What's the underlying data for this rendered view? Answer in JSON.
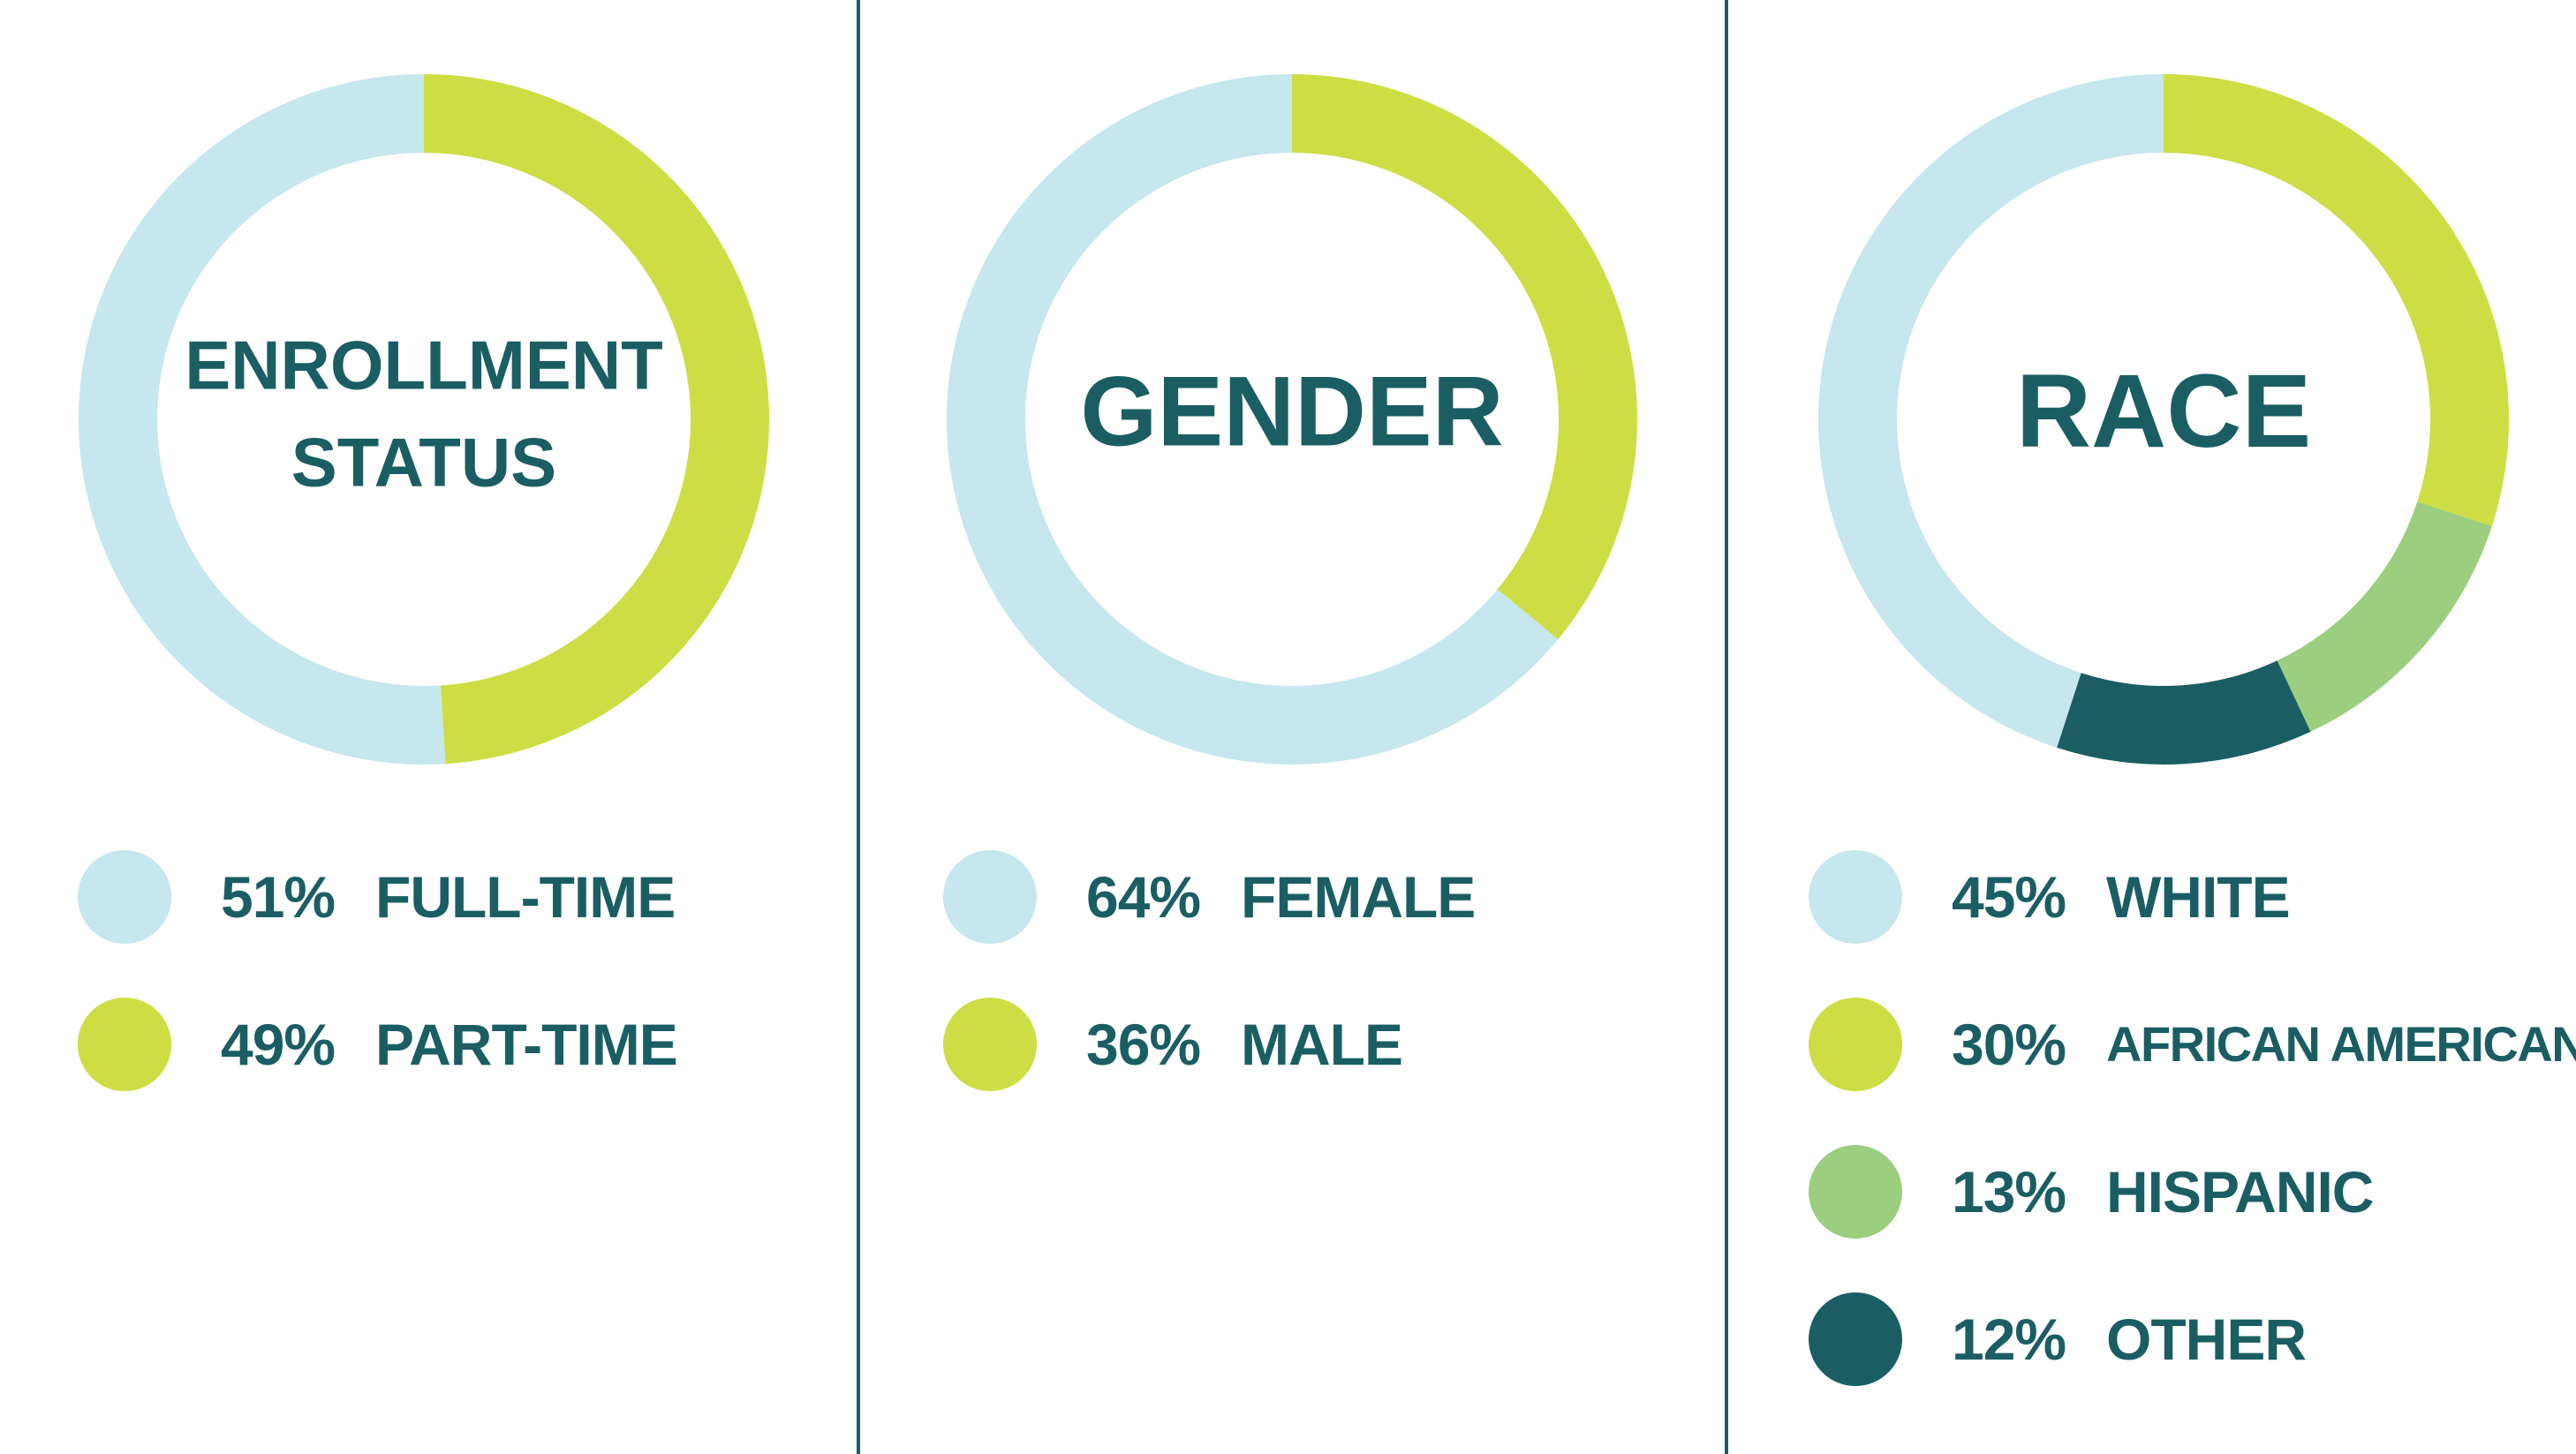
{
  "colors": {
    "light_blue": "#c5e7ed",
    "lime": "#cdde44",
    "light_green": "#9bcf7f",
    "dark_teal": "#1a5e63",
    "text": "#1a5e63"
  },
  "chart_data": [
    {
      "type": "pie",
      "title": "ENROLLMENT STATUS",
      "title_lines": [
        "ENROLLMENT",
        "STATUS"
      ],
      "categories": [
        "FULL-TIME",
        "PART-TIME"
      ],
      "values": [
        51,
        49
      ],
      "value_labels": [
        "51%",
        "49%"
      ],
      "colors": [
        "#c5e7ed",
        "#cdde44"
      ]
    },
    {
      "type": "pie",
      "title": "GENDER",
      "title_lines": [
        "GENDER"
      ],
      "categories": [
        "FEMALE",
        "MALE"
      ],
      "values": [
        64,
        36
      ],
      "value_labels": [
        "64%",
        "36%"
      ],
      "colors": [
        "#c5e7ed",
        "#cdde44"
      ]
    },
    {
      "type": "pie",
      "title": "RACE",
      "title_lines": [
        "RACE"
      ],
      "categories": [
        "WHITE",
        "AFRICAN AMERICAN",
        "HISPANIC",
        "OTHER"
      ],
      "values": [
        45,
        30,
        13,
        12
      ],
      "value_labels": [
        "45%",
        "30%",
        "13%",
        "12%"
      ],
      "colors": [
        "#c5e7ed",
        "#cdde44",
        "#9bcf7f",
        "#1a5e63"
      ]
    }
  ]
}
